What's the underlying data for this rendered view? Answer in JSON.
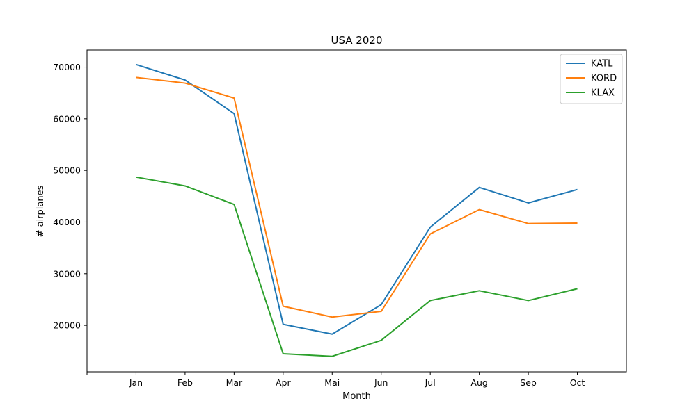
{
  "chart_data": {
    "type": "line",
    "title": "USA 2020",
    "xlabel": "Month",
    "ylabel": "# airplanes",
    "categories": [
      "Jan",
      "Feb",
      "Mar",
      "Apr",
      "Mai",
      "Jun",
      "Jul",
      "Aug",
      "Sep",
      "Oct"
    ],
    "x_range": [
      -1,
      10
    ],
    "ylim": [
      11000,
      73300
    ],
    "yticks": [
      20000,
      30000,
      40000,
      50000,
      60000,
      70000
    ],
    "grid": false,
    "legend_position": "top-right",
    "series": [
      {
        "name": "KATL",
        "color": "#1f77b4",
        "values": [
          70500,
          67500,
          61000,
          20200,
          18300,
          24000,
          39000,
          46700,
          43700,
          46300
        ]
      },
      {
        "name": "KORD",
        "color": "#ff7f0e",
        "values": [
          68000,
          66900,
          64000,
          23700,
          21600,
          22700,
          37700,
          42400,
          39700,
          39800
        ]
      },
      {
        "name": "KLAX",
        "color": "#2ca02c",
        "values": [
          48700,
          47000,
          43400,
          14500,
          14000,
          17100,
          24800,
          26700,
          24800,
          27100
        ]
      }
    ]
  }
}
